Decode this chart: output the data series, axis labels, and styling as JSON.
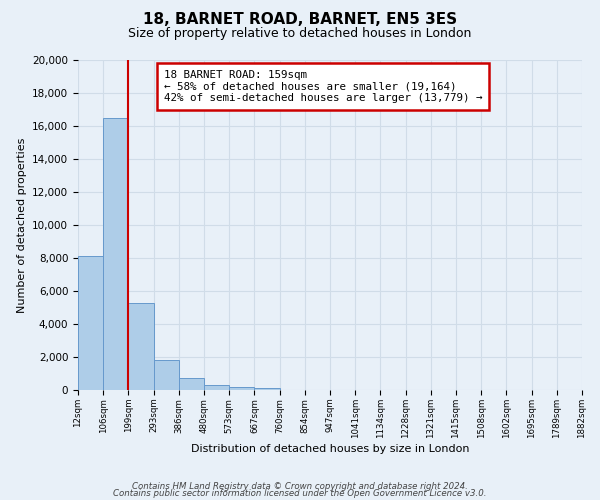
{
  "title": "18, BARNET ROAD, BARNET, EN5 3ES",
  "subtitle": "Size of property relative to detached houses in London",
  "xlabel": "Distribution of detached houses by size in London",
  "ylabel": "Number of detached properties",
  "bar_values": [
    8100,
    16500,
    5300,
    1800,
    700,
    300,
    200,
    100,
    0,
    0,
    0,
    0,
    0,
    0,
    0,
    0,
    0,
    0,
    0,
    0
  ],
  "bin_labels": [
    "12sqm",
    "106sqm",
    "199sqm",
    "293sqm",
    "386sqm",
    "480sqm",
    "573sqm",
    "667sqm",
    "760sqm",
    "854sqm",
    "947sqm",
    "1041sqm",
    "1134sqm",
    "1228sqm",
    "1321sqm",
    "1415sqm",
    "1508sqm",
    "1602sqm",
    "1695sqm",
    "1789sqm",
    "1882sqm"
  ],
  "bar_color": "#aecde8",
  "bar_edge_color": "#6699cc",
  "vline_color": "#cc0000",
  "vline_x": 2.0,
  "ylim": [
    0,
    20000
  ],
  "yticks": [
    0,
    2000,
    4000,
    6000,
    8000,
    10000,
    12000,
    14000,
    16000,
    18000,
    20000
  ],
  "annotation_title": "18 BARNET ROAD: 159sqm",
  "annotation_line1": "← 58% of detached houses are smaller (19,164)",
  "annotation_line2": "42% of semi-detached houses are larger (13,779) →",
  "annotation_box_color": "#ffffff",
  "annotation_box_edge": "#cc0000",
  "footer1": "Contains HM Land Registry data © Crown copyright and database right 2024.",
  "footer2": "Contains public sector information licensed under the Open Government Licence v3.0.",
  "bg_color": "#e8f0f8",
  "grid_color": "#d0dce8"
}
